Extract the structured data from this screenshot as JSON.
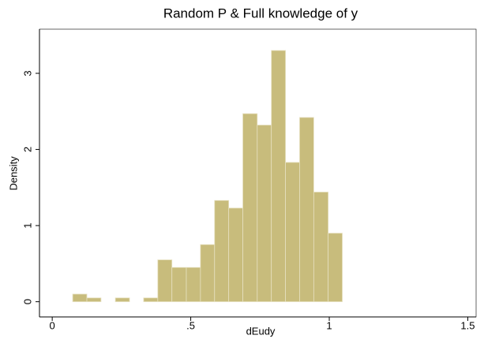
{
  "chart_data": {
    "type": "histogram",
    "title": "Random P & Full knowledge of y",
    "x_label": "dEudy",
    "y_label": "Density",
    "bins": [
      0.074,
      0.125,
      0.176,
      0.228,
      0.279,
      0.33,
      0.381,
      0.432,
      0.484,
      0.535,
      0.586,
      0.637,
      0.688,
      0.74,
      0.791,
      0.842,
      0.893,
      0.944,
      0.996,
      1.047
    ],
    "values": [
      0.1,
      0.05,
      0,
      0.05,
      0,
      0.05,
      0.55,
      0.45,
      0.45,
      0.75,
      1.33,
      1.23,
      2.47,
      2.32,
      3.3,
      1.83,
      2.42,
      1.44,
      0.9
    ],
    "color": "#c8bc7c",
    "xlim": [
      -0.046,
      1.53
    ],
    "xticks": [
      0,
      {
        "value": 0.5,
        "label": ".5"
      },
      1,
      1.5
    ],
    "ylim": [
      -0.2,
      3.58
    ],
    "yticks": [
      0,
      1,
      2,
      3
    ],
    "grid": false
  }
}
